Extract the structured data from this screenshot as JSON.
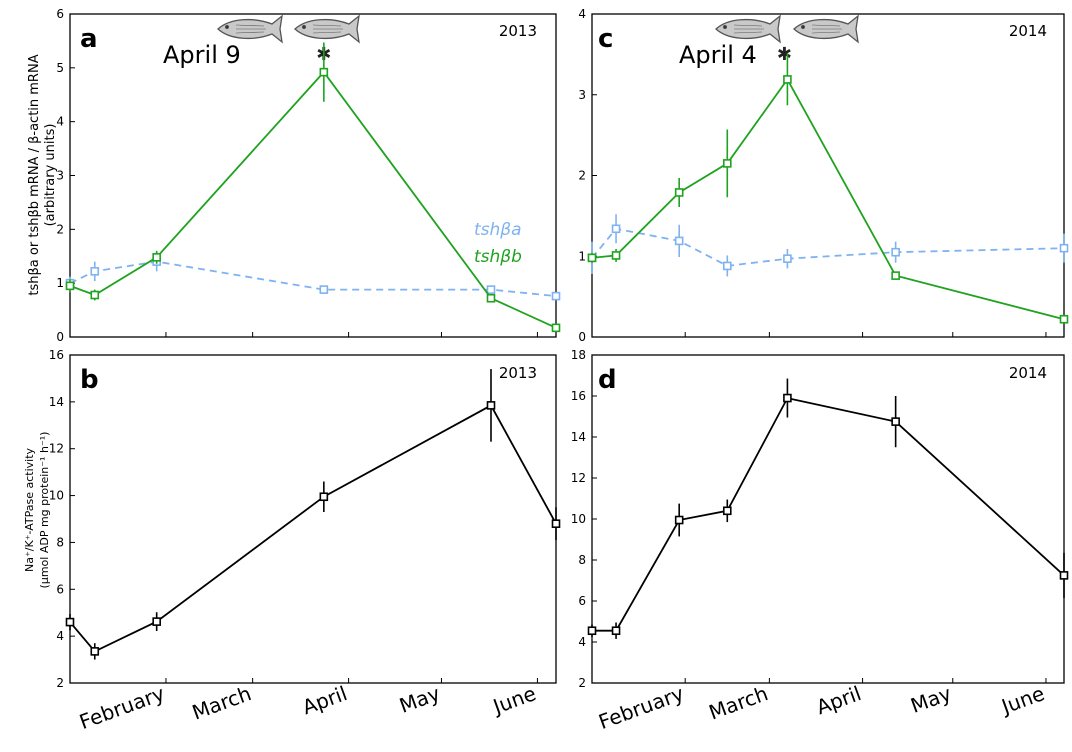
{
  "colors": {
    "tsh_a": "#7fb2f0",
    "tsh_b": "#1fa31f",
    "nka": "#000000",
    "fish_fill": "#c9c9c9",
    "fish_stroke": "#555555"
  },
  "labels": {
    "ylabel_top": "tshβa or tshβb mRNA / β-actin mRNA",
    "ylabel_top_units": "(arbitrary units)",
    "ylabel_bottom": "Na⁺/K⁺-ATPase activity",
    "ylabel_bottom_units": "(μmol ADP mg protein⁻¹ h⁻¹)",
    "legend_a": "tshβa",
    "legend_b": "tshβb",
    "star": "✱"
  },
  "chart_data": [
    {
      "panel": "a",
      "year": "2013",
      "type": "line",
      "annotation": "April 9",
      "xlabel": "",
      "ylabel": "tshβa or tshβb mRNA / β-actin mRNA (arbitrary units)",
      "xlim": [
        0,
        157
      ],
      "ylim": [
        0,
        6
      ],
      "yticks": [
        0,
        1,
        2,
        3,
        4,
        5,
        6
      ],
      "xticks": [
        {
          "day": 31,
          "label": "February"
        },
        {
          "day": 59,
          "label": "March"
        },
        {
          "day": 90,
          "label": "April"
        },
        {
          "day": 120,
          "label": "May"
        },
        {
          "day": 151,
          "label": "June"
        }
      ],
      "star_day": 82,
      "fish_count": 2,
      "legend": "right",
      "series": [
        {
          "name": "tshβa",
          "style": "dashed",
          "x": [
            0,
            8,
            28,
            82,
            136,
            157
          ],
          "y": [
            1.0,
            1.22,
            1.4,
            0.88,
            0.88,
            0.76
          ],
          "err": [
            0.12,
            0.18,
            0.18,
            0.06,
            0.06,
            0.04
          ]
        },
        {
          "name": "tshβb",
          "style": "solid",
          "x": [
            0,
            8,
            28,
            82,
            136,
            157
          ],
          "y": [
            0.95,
            0.78,
            1.48,
            4.92,
            0.72,
            0.17
          ],
          "err": [
            0.12,
            0.1,
            0.12,
            0.55,
            0.05,
            0.04
          ]
        }
      ]
    },
    {
      "panel": "b",
      "year": "2013",
      "type": "line",
      "xlabel": "",
      "ylabel": "Na⁺/K⁺-ATPase activity (μmol ADP mg protein⁻¹ h⁻¹)",
      "xlim": [
        0,
        157
      ],
      "ylim": [
        2,
        16
      ],
      "yticks": [
        2,
        4,
        6,
        8,
        10,
        12,
        14,
        16
      ],
      "xticks": [
        {
          "day": 31,
          "label": "February"
        },
        {
          "day": 59,
          "label": "March"
        },
        {
          "day": 90,
          "label": "April"
        },
        {
          "day": 120,
          "label": "May"
        },
        {
          "day": 151,
          "label": "June"
        }
      ],
      "series": [
        {
          "style": "solid",
          "x": [
            0,
            8,
            28,
            82,
            136,
            157
          ],
          "y": [
            4.6,
            3.35,
            4.62,
            9.95,
            13.85,
            8.8
          ],
          "err": [
            0.35,
            0.35,
            0.4,
            0.65,
            1.55,
            0.7
          ]
        }
      ]
    },
    {
      "panel": "c",
      "year": "2014",
      "type": "line",
      "annotation": "April 4",
      "xlabel": "",
      "ylabel": "",
      "xlim": [
        0,
        157
      ],
      "ylim": [
        0,
        4
      ],
      "yticks": [
        0,
        1,
        2,
        3,
        4
      ],
      "xticks": [
        {
          "day": 31,
          "label": "February"
        },
        {
          "day": 59,
          "label": "March"
        },
        {
          "day": 90,
          "label": "April"
        },
        {
          "day": 120,
          "label": "May"
        },
        {
          "day": 151,
          "label": "June"
        }
      ],
      "star_day": 64,
      "fish_count": 2,
      "series": [
        {
          "name": "tshβa",
          "style": "dashed",
          "x": [
            0,
            8,
            29,
            45,
            65,
            101,
            157
          ],
          "y": [
            0.98,
            1.34,
            1.19,
            0.88,
            0.97,
            1.05,
            1.1
          ],
          "err": [
            0.2,
            0.18,
            0.2,
            0.13,
            0.12,
            0.13,
            0.18
          ]
        },
        {
          "name": "tshβb",
          "style": "solid",
          "x": [
            0,
            8,
            29,
            45,
            65,
            101,
            157
          ],
          "y": [
            0.98,
            1.01,
            1.79,
            2.15,
            3.19,
            0.76,
            0.22
          ],
          "err": [
            0.06,
            0.08,
            0.18,
            0.42,
            0.32,
            0.05,
            0.02
          ]
        }
      ]
    },
    {
      "panel": "d",
      "year": "2014",
      "type": "line",
      "xlabel": "",
      "ylabel": "",
      "xlim": [
        0,
        157
      ],
      "ylim": [
        2,
        18
      ],
      "yticks": [
        2,
        4,
        6,
        8,
        10,
        12,
        14,
        16,
        18
      ],
      "xticks": [
        {
          "day": 31,
          "label": "February"
        },
        {
          "day": 59,
          "label": "March"
        },
        {
          "day": 90,
          "label": "April"
        },
        {
          "day": 120,
          "label": "May"
        },
        {
          "day": 151,
          "label": "June"
        }
      ],
      "series": [
        {
          "style": "solid",
          "x": [
            0,
            8,
            29,
            45,
            65,
            101,
            157
          ],
          "y": [
            4.55,
            4.55,
            9.95,
            10.4,
            15.9,
            14.75,
            7.25
          ],
          "err": [
            0.3,
            0.4,
            0.8,
            0.55,
            0.95,
            1.25,
            1.1
          ]
        }
      ]
    }
  ]
}
